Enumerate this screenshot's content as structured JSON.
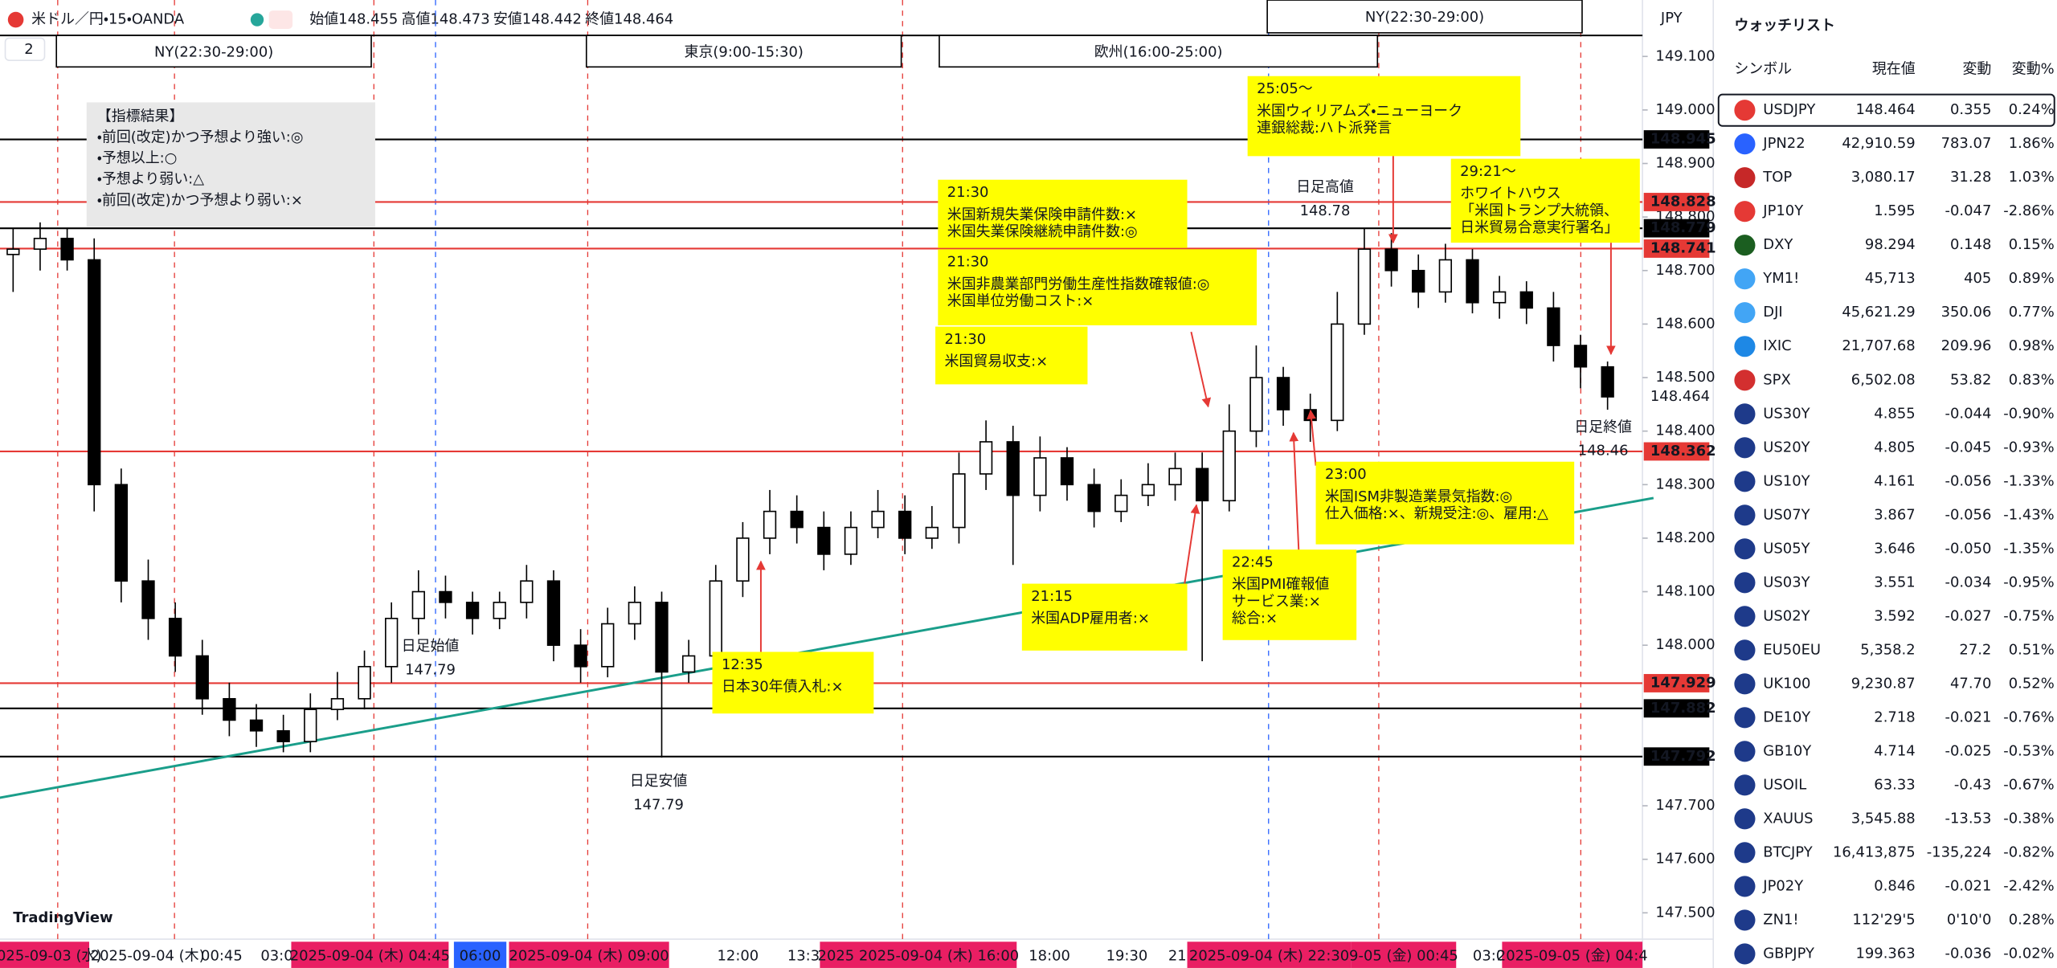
{
  "header": {
    "symbol": "米ドル／円・15・OANDA",
    "open": "始値148.455",
    "high": "高値148.473",
    "low": "安値148.442",
    "close": "終値148.464",
    "collapse": "2",
    "currency": "JPY",
    "logo": "TradingView"
  },
  "sessions": [
    "NY(22:30-29:00)",
    "東京(9:00-15:30)",
    "欧州(16:00-25:00)",
    "NY(22:30-29:00)"
  ],
  "legend_box": {
    "title": "【指標結果】",
    "lines": [
      "・前回(改定)かつ予想より強い:◎",
      "・予想以上:○",
      "・予想より弱い:△",
      "・前回(改定)かつ予想より弱い:×"
    ]
  },
  "chart": {
    "type": "candlestick",
    "ylim": [
      147.44,
      149.13
    ],
    "yticks": [
      {
        "value": 149.1,
        "label": "149.100"
      },
      {
        "value": 149,
        "label": "149.000"
      },
      {
        "value": 148.9,
        "label": "148.900"
      },
      {
        "value": 148.8,
        "label": "148.800"
      },
      {
        "value": 148.7,
        "label": "148.700"
      },
      {
        "value": 148.6,
        "label": "148.600"
      },
      {
        "value": 148.5,
        "label": "148.500"
      },
      {
        "value": 148.4,
        "label": "148.400"
      },
      {
        "value": 148.3,
        "label": "148.300"
      },
      {
        "value": 148.2,
        "label": "148.200"
      },
      {
        "value": 148.1,
        "label": "148.100"
      },
      {
        "value": 148,
        "label": "148.000"
      },
      {
        "value": 147.7,
        "label": "147.700"
      },
      {
        "value": 147.6,
        "label": "147.600"
      },
      {
        "value": 147.5,
        "label": "147.500"
      }
    ],
    "open": [
      148.73,
      148.74,
      148.76,
      148.72,
      148.3,
      148.12,
      148.05,
      147.98,
      147.9,
      147.86,
      147.84,
      147.82,
      147.88,
      147.9,
      147.96,
      148.05,
      148.1,
      148.08,
      148.05,
      148.08,
      148.12,
      148.0,
      147.96,
      148.04,
      148.08,
      147.95,
      147.98,
      148.12,
      148.2,
      148.25,
      148.22,
      148.17,
      148.22,
      148.25,
      148.2,
      148.22,
      148.32,
      148.38,
      148.28,
      148.35,
      148.3,
      148.25,
      148.28,
      148.3,
      148.33,
      148.27,
      148.4,
      148.5,
      148.44,
      148.42,
      148.6,
      148.74,
      148.7,
      148.66,
      148.72,
      148.64,
      148.66,
      148.63,
      148.56,
      148.52
    ],
    "high": [
      148.78,
      148.79,
      148.78,
      148.76,
      148.33,
      148.16,
      148.08,
      148.01,
      147.93,
      147.89,
      147.87,
      147.91,
      147.95,
      147.99,
      148.08,
      148.14,
      148.13,
      148.1,
      148.1,
      148.15,
      148.14,
      148.03,
      148.07,
      148.11,
      148.1,
      148.01,
      148.15,
      148.23,
      148.29,
      148.28,
      148.25,
      148.25,
      148.29,
      148.28,
      148.26,
      148.36,
      148.42,
      148.41,
      148.39,
      148.37,
      148.33,
      148.31,
      148.34,
      148.36,
      148.36,
      148.45,
      148.56,
      148.52,
      148.47,
      148.66,
      148.78,
      148.77,
      148.73,
      148.75,
      148.74,
      148.69,
      148.68,
      148.66,
      148.58,
      148.53
    ],
    "low": [
      148.66,
      148.7,
      148.7,
      148.25,
      148.08,
      148.01,
      147.95,
      147.87,
      147.83,
      147.81,
      147.8,
      147.8,
      147.86,
      147.88,
      147.93,
      148.02,
      148.05,
      148.02,
      148.03,
      148.05,
      147.97,
      147.93,
      147.94,
      148.01,
      147.79,
      147.93,
      147.96,
      148.09,
      148.17,
      148.19,
      148.14,
      148.15,
      148.2,
      148.17,
      148.18,
      148.19,
      148.29,
      148.15,
      148.25,
      148.27,
      148.22,
      148.23,
      148.26,
      148.27,
      147.97,
      148.25,
      148.37,
      148.41,
      148.38,
      148.4,
      148.58,
      148.67,
      148.63,
      148.64,
      148.62,
      148.61,
      148.6,
      148.53,
      148.48,
      148.44
    ],
    "close": [
      148.74,
      148.76,
      148.72,
      148.3,
      148.12,
      148.05,
      147.98,
      147.9,
      147.86,
      147.84,
      147.82,
      147.88,
      147.9,
      147.96,
      148.05,
      148.1,
      148.08,
      148.05,
      148.08,
      148.12,
      148.0,
      147.96,
      148.04,
      148.08,
      147.95,
      147.98,
      148.12,
      148.2,
      148.25,
      148.22,
      148.17,
      148.22,
      148.25,
      148.2,
      148.22,
      148.32,
      148.38,
      148.28,
      148.35,
      148.3,
      148.25,
      148.28,
      148.3,
      148.33,
      148.27,
      148.4,
      148.5,
      148.44,
      148.42,
      148.6,
      148.74,
      148.7,
      148.66,
      148.72,
      148.64,
      148.66,
      148.63,
      148.56,
      148.52,
      148.464
    ],
    "trendline": {
      "color": "#1a9e8a",
      "values": [
        147.715,
        148.275
      ]
    },
    "levels": [
      {
        "value": 148.945,
        "color": "#000000"
      },
      {
        "value": 148.828,
        "color": "#e53935"
      },
      {
        "value": 148.779,
        "color": "#000000"
      },
      {
        "value": 148.741,
        "color": "#e53935"
      },
      {
        "value": 148.362,
        "color": "#e53935"
      },
      {
        "value": 147.929,
        "color": "#e53935"
      },
      {
        "value": 147.882,
        "color": "#000000"
      },
      {
        "value": 147.792,
        "color": "#000000"
      }
    ],
    "last_price": 148.464,
    "time_labels": [
      "2025-09-03 (水)",
      "2025-09-04 (木)",
      "00:45",
      "03:0",
      "2025-09-04 (木)  04:45",
      "06:00",
      "2025-09-04 (木)  09:00",
      "12:00",
      "13:3",
      "2025  2025-09-04 (木)  16:00",
      "18:00",
      "19:30",
      "21",
      "2025-09-04 (木)  22:30",
      "9-05 (金)  00:45",
      "03:0",
      "2025-09-05 (金)  04:4"
    ]
  },
  "annotations": [
    {
      "lines": [
        "21:30",
        "米国新規失業保険申請件数:×",
        "米国失業保険継続申請件数:◎"
      ],
      "color": "#000000"
    },
    {
      "lines": [
        "21:30",
        "米国非農業部門労働生産性指数確報値:◎",
        "米国単位労働コスト:×"
      ],
      "color": "#000000"
    },
    {
      "lines": [
        "21:30",
        "米国貿易収支:×"
      ],
      "color": "#000000"
    },
    {
      "lines": [
        "25:05～",
        "米国ウィリアムズ・ニューヨーク",
        "連銀総裁:ハト派発言"
      ],
      "color": "#000000"
    },
    {
      "lines": [
        "29:21～",
        "ホワイトハウス",
        "「米国トランプ大統領、",
        "日米貿易合意実行署名」"
      ],
      "color": "#e53935"
    },
    {
      "lines": [
        "23:00",
        "米国ISM非製造業景気指数:◎",
        "仕入価格:×、新規受注:◎、雇用:△"
      ],
      "color": "#e53935"
    },
    {
      "lines": [
        "22:45",
        "米国PMI確報値",
        "サービス業:×",
        "総合:×"
      ],
      "color": "#000000"
    },
    {
      "lines": [
        "21:15",
        "米国ADP雇用者:×"
      ],
      "color": "#e53935"
    },
    {
      "lines": [
        "12:35",
        "日本30年債入札:×"
      ],
      "color": "#000000"
    }
  ],
  "daily_labels": [
    {
      "lines": [
        "日足始値",
        "147.79"
      ]
    },
    {
      "lines": [
        "日足安値",
        "147.79"
      ]
    },
    {
      "lines": [
        "日足高値",
        "148.78"
      ]
    },
    {
      "lines": [
        "日足終値",
        "148.46"
      ]
    }
  ],
  "watchlist": {
    "title": "ウォッチリスト",
    "columns": [
      "シンボル",
      "現在値",
      "変動",
      "変動%"
    ],
    "rows": [
      [
        "USDJPY",
        "148.464",
        "0.355",
        "0.24%"
      ],
      [
        "JPN22",
        "42,910.59",
        "783.07",
        "1.86%"
      ],
      [
        "TOP",
        "3,080.17",
        "31.28",
        "1.03%"
      ],
      [
        "JP10Y",
        "1.595",
        "-0.047",
        "-2.86%"
      ],
      [
        "DXY",
        "98.294",
        "0.148",
        "0.15%"
      ],
      [
        "YM1!",
        "45,713",
        "405",
        "0.89%"
      ],
      [
        "DJI",
        "45,621.29",
        "350.06",
        "0.77%"
      ],
      [
        "IXIC",
        "21,707.68",
        "209.96",
        "0.98%"
      ],
      [
        "SPX",
        "6,502.08",
        "53.82",
        "0.83%"
      ],
      [
        "US30Y",
        "4.855",
        "-0.044",
        "-0.90%"
      ],
      [
        "US20Y",
        "4.805",
        "-0.045",
        "-0.93%"
      ],
      [
        "US10Y",
        "4.161",
        "-0.056",
        "-1.33%"
      ],
      [
        "US07Y",
        "3.867",
        "-0.056",
        "-1.43%"
      ],
      [
        "US05Y",
        "3.646",
        "-0.050",
        "-1.35%"
      ],
      [
        "US03Y",
        "3.551",
        "-0.034",
        "-0.95%"
      ],
      [
        "US02Y",
        "3.592",
        "-0.027",
        "-0.75%"
      ],
      [
        "EU50EU",
        "5,358.2",
        "27.2",
        "0.51%"
      ],
      [
        "UK100",
        "9,230.87",
        "47.70",
        "0.52%"
      ],
      [
        "DE10Y",
        "2.718",
        "-0.021",
        "-0.76%"
      ],
      [
        "GB10Y",
        "4.714",
        "-0.025",
        "-0.53%"
      ],
      [
        "USOIL",
        "63.33",
        "-0.43",
        "-0.67%"
      ],
      [
        "XAUUS",
        "3,545.88",
        "-13.53",
        "-0.38%"
      ],
      [
        "BTCJPY",
        "16,413,875",
        "-135,224",
        "-0.82%"
      ],
      [
        "JP02Y",
        "0.846",
        "-0.021",
        "-2.42%"
      ],
      [
        "ZN1!",
        "112'29'5",
        "0'10'0",
        "0.28%"
      ],
      [
        "GBPJPY",
        "199.363",
        "-0.036",
        "-0.02%"
      ]
    ]
  }
}
